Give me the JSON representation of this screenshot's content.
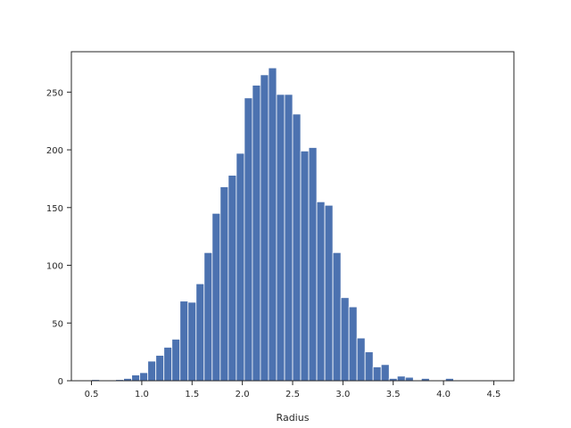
{
  "chart_data": {
    "type": "bar",
    "title": "",
    "xlabel": "Radius",
    "ylabel": "",
    "xlim": [
      0.3,
      4.7
    ],
    "ylim": [
      0,
      285
    ],
    "xticks": [
      0.5,
      1.0,
      1.5,
      2.0,
      2.5,
      3.0,
      3.5,
      4.0,
      4.5
    ],
    "xtick_labels": [
      "0.5",
      "1.0",
      "1.5",
      "2.0",
      "2.5",
      "3.0",
      "3.5",
      "4.0",
      "4.5"
    ],
    "yticks": [
      0,
      50,
      100,
      150,
      200,
      250
    ],
    "ytick_labels": [
      "0",
      "50",
      "100",
      "150",
      "200",
      "250"
    ],
    "grid": false,
    "legend": false,
    "bar_color": "#4c72b0",
    "bin_edges": [
      0.5,
      0.58,
      0.66,
      0.74,
      0.82,
      0.9,
      0.98,
      1.06,
      1.14,
      1.22,
      1.3,
      1.38,
      1.46,
      1.54,
      1.62,
      1.7,
      1.78,
      1.86,
      1.94,
      2.02,
      2.1,
      2.18,
      2.26,
      2.34,
      2.42,
      2.5,
      2.58,
      2.66,
      2.74,
      2.82,
      2.9,
      2.98,
      3.06,
      3.14,
      3.22,
      3.3,
      3.38,
      3.46,
      3.54,
      3.62,
      3.7,
      3.78,
      3.86,
      3.94,
      4.02,
      4.1,
      4.18,
      4.26,
      4.34,
      4.42,
      4.5
    ],
    "values": [
      1,
      0,
      0,
      1,
      2,
      5,
      7,
      17,
      22,
      29,
      36,
      69,
      68,
      84,
      111,
      145,
      168,
      178,
      197,
      245,
      256,
      265,
      271,
      248,
      248,
      231,
      199,
      202,
      155,
      152,
      111,
      72,
      64,
      37,
      25,
      12,
      14,
      2,
      4,
      3,
      0,
      2,
      0,
      0,
      2,
      0,
      0,
      0,
      0,
      0
    ]
  }
}
